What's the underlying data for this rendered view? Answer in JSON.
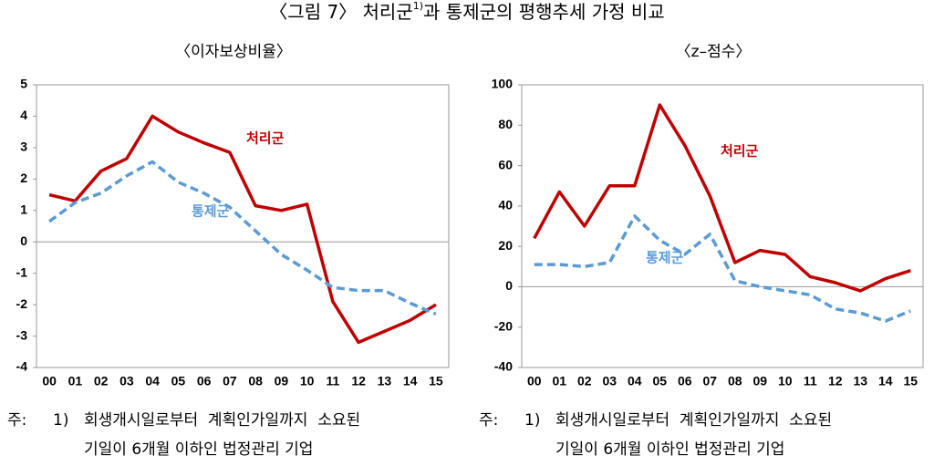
{
  "title_parts": [
    "〈그림 7〉 처리군",
    "1)",
    "과 통제군의 평행추세 가정 비교"
  ],
  "chart_data": [
    {
      "type": "line",
      "subtitle": "〈이자보상비율〉",
      "categories": [
        "00",
        "01",
        "02",
        "03",
        "04",
        "05",
        "06",
        "07",
        "08",
        "09",
        "10",
        "11",
        "12",
        "13",
        "14",
        "15"
      ],
      "ylim": [
        -4,
        5
      ],
      "yticks": [
        -4,
        -3,
        -2,
        -1,
        0,
        1,
        2,
        3,
        4,
        5
      ],
      "series": [
        {
          "name": "처리군",
          "color": "#c00000",
          "dashed": false,
          "values": [
            1.5,
            1.3,
            2.25,
            2.65,
            4.0,
            3.5,
            3.15,
            2.85,
            1.15,
            1.0,
            1.2,
            -1.9,
            -3.2,
            -2.85,
            -2.5,
            -2.0
          ]
        },
        {
          "name": "통제군",
          "color": "#5b9bd5",
          "dashed": true,
          "values": [
            0.65,
            1.25,
            1.55,
            2.1,
            2.55,
            1.9,
            1.55,
            1.1,
            0.35,
            -0.4,
            -0.9,
            -1.45,
            -1.55,
            -1.55,
            -1.95,
            -2.3
          ]
        }
      ],
      "note_label": "주:",
      "note_number": "1)",
      "note_lines": [
        "회생개시일로부터  계획인가일까지  소요된",
        "기일이 6개월 이하인 법정관리 기업"
      ]
    },
    {
      "type": "line",
      "subtitle": "〈z–점수〉",
      "categories": [
        "00",
        "01",
        "02",
        "03",
        "04",
        "05",
        "06",
        "07",
        "08",
        "09",
        "10",
        "11",
        "12",
        "13",
        "14",
        "15"
      ],
      "ylim": [
        -40,
        100
      ],
      "yticks": [
        -40,
        -20,
        0,
        20,
        40,
        60,
        80,
        100
      ],
      "series": [
        {
          "name": "처리군",
          "color": "#c00000",
          "dashed": false,
          "values": [
            24,
            47,
            30,
            50,
            50,
            90,
            70,
            45,
            12,
            18,
            16,
            5,
            2,
            -2,
            4,
            8
          ]
        },
        {
          "name": "통제군",
          "color": "#5b9bd5",
          "dashed": true,
          "values": [
            11,
            11,
            10,
            12,
            35,
            23,
            16,
            26,
            3,
            0,
            -2,
            -4,
            -11,
            -13,
            -17,
            -12
          ]
        }
      ],
      "note_label": "주:",
      "note_number": "1)",
      "note_lines": [
        "회생개시일로부터  계획인가일까지  소요된",
        "기일이 6개월 이하인 법정관리 기업"
      ]
    }
  ]
}
